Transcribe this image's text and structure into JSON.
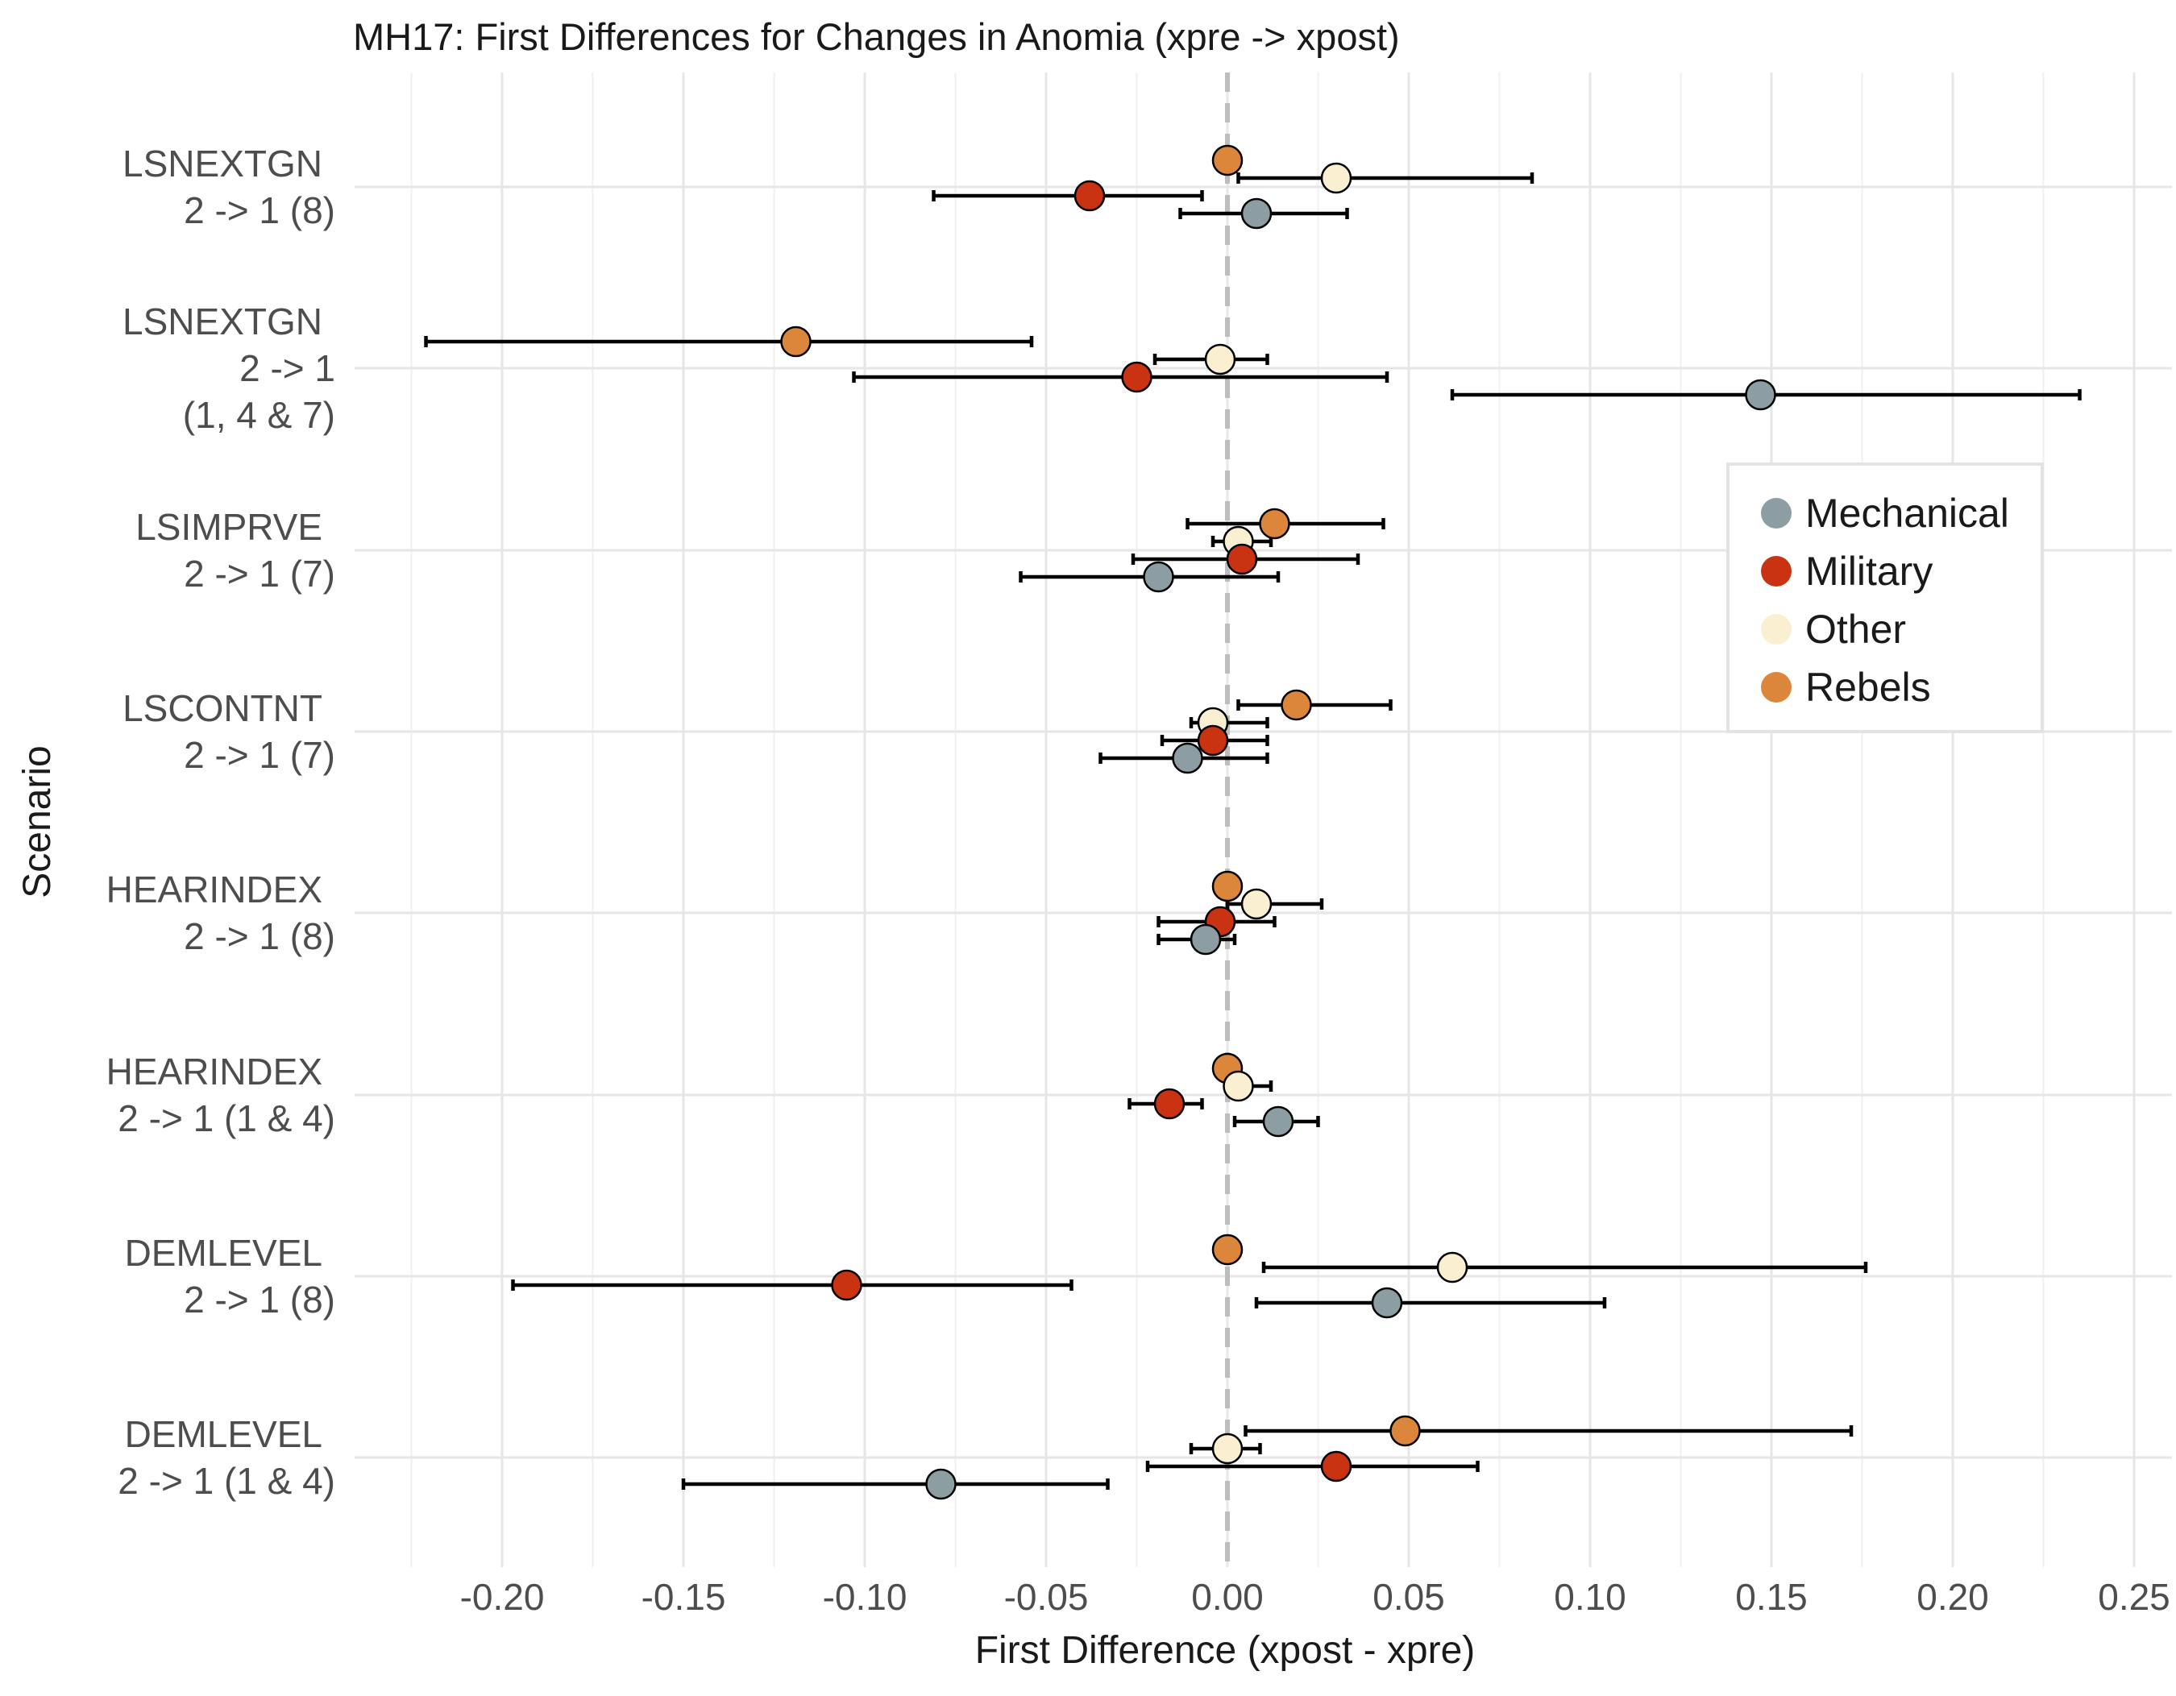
{
  "colors": {
    "Mechanical": "#8c9ea3",
    "Military": "#c93312",
    "Other": "#faefd1",
    "Rebels": "#dc863b"
  },
  "chart_data": {
    "type": "scatter",
    "subtype": "dot-and-whisker",
    "title": "MH17: First Differences for Changes in Anomia (xpre -> xpost)",
    "xlabel": "First Difference (xpost - xpre)",
    "ylabel": "Scenario",
    "xlim": [
      -0.225,
      0.25
    ],
    "xticks": [
      -0.2,
      -0.15,
      -0.1,
      -0.05,
      0.0,
      0.05,
      0.1,
      0.15,
      0.2,
      0.25
    ],
    "xtick_labels": [
      "-0.20",
      "-0.15",
      "-0.10",
      "-0.05",
      "0.00",
      "0.05",
      "0.10",
      "0.15",
      "0.20",
      "0.25"
    ],
    "grid": true,
    "reference_line": {
      "x": 0,
      "style": "dashed"
    },
    "legend": {
      "position": "right",
      "entries": [
        "Mechanical",
        "Military",
        "Other",
        "Rebels"
      ]
    },
    "categories": [
      {
        "lines": [
          "LSNEXTGN",
          "2 -> 1 (8)"
        ]
      },
      {
        "lines": [
          "LSNEXTGN",
          "2 -> 1",
          "(1, 4 & 7)"
        ]
      },
      {
        "lines": [
          "LSIMPRVE",
          "2 -> 1 (7)"
        ]
      },
      {
        "lines": [
          "LSCONTNT",
          "2 -> 1 (7)"
        ]
      },
      {
        "lines": [
          "HEARINDEX",
          "2 -> 1 (8)"
        ]
      },
      {
        "lines": [
          "HEARINDEX",
          "2 -> 1 (1 & 4)"
        ]
      },
      {
        "lines": [
          "DEMLEVEL",
          "2 -> 1 (8)"
        ]
      },
      {
        "lines": [
          "DEMLEVEL",
          "2 -> 1 (1 & 4)"
        ]
      }
    ],
    "series": [
      {
        "name": "Rebels",
        "values": [
          {
            "x": 0.0,
            "lo": null,
            "hi": null
          },
          {
            "x": -0.119,
            "lo": -0.221,
            "hi": -0.054
          },
          {
            "x": 0.013,
            "lo": -0.011,
            "hi": 0.043
          },
          {
            "x": 0.019,
            "lo": 0.003,
            "hi": 0.045
          },
          {
            "x": 0.0,
            "lo": null,
            "hi": null
          },
          {
            "x": 0.0,
            "lo": null,
            "hi": null
          },
          {
            "x": 0.0,
            "lo": null,
            "hi": null
          },
          {
            "x": 0.049,
            "lo": 0.005,
            "hi": 0.172
          }
        ]
      },
      {
        "name": "Other",
        "values": [
          {
            "x": 0.03,
            "lo": 0.003,
            "hi": 0.084
          },
          {
            "x": -0.002,
            "lo": -0.02,
            "hi": 0.011
          },
          {
            "x": 0.003,
            "lo": -0.004,
            "hi": 0.012
          },
          {
            "x": -0.004,
            "lo": -0.01,
            "hi": 0.011
          },
          {
            "x": 0.008,
            "lo": 0.0,
            "hi": 0.026
          },
          {
            "x": 0.003,
            "lo": 0.0,
            "hi": 0.012
          },
          {
            "x": 0.062,
            "lo": 0.01,
            "hi": 0.176
          },
          {
            "x": 0.0,
            "lo": -0.01,
            "hi": 0.009
          }
        ]
      },
      {
        "name": "Military",
        "values": [
          {
            "x": -0.038,
            "lo": -0.081,
            "hi": -0.007
          },
          {
            "x": -0.025,
            "lo": -0.103,
            "hi": 0.044
          },
          {
            "x": 0.004,
            "lo": -0.026,
            "hi": 0.036
          },
          {
            "x": -0.004,
            "lo": -0.018,
            "hi": 0.011
          },
          {
            "x": -0.002,
            "lo": -0.019,
            "hi": 0.013
          },
          {
            "x": -0.016,
            "lo": -0.027,
            "hi": -0.007
          },
          {
            "x": -0.105,
            "lo": -0.197,
            "hi": -0.043
          },
          {
            "x": 0.03,
            "lo": -0.022,
            "hi": 0.069
          }
        ]
      },
      {
        "name": "Mechanical",
        "values": [
          {
            "x": 0.008,
            "lo": -0.013,
            "hi": 0.033
          },
          {
            "x": 0.147,
            "lo": 0.062,
            "hi": 0.235
          },
          {
            "x": -0.019,
            "lo": -0.057,
            "hi": 0.014
          },
          {
            "x": -0.011,
            "lo": -0.035,
            "hi": 0.011
          },
          {
            "x": -0.006,
            "lo": -0.019,
            "hi": 0.002
          },
          {
            "x": 0.014,
            "lo": 0.002,
            "hi": 0.025
          },
          {
            "x": 0.044,
            "lo": 0.008,
            "hi": 0.104
          },
          {
            "x": -0.079,
            "lo": -0.15,
            "hi": -0.033
          }
        ]
      }
    ]
  }
}
